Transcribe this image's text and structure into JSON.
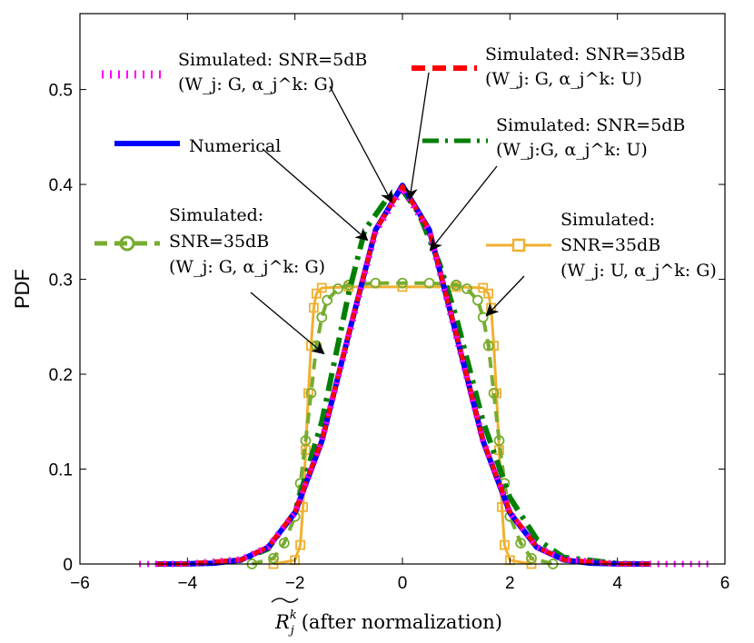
{
  "chart_data": {
    "type": "line",
    "xlim": [
      -6,
      6
    ],
    "ylim": [
      0,
      0.58
    ],
    "xticks": [
      "−6",
      "−4",
      "−2",
      "0",
      "2",
      "4",
      "6"
    ],
    "yticks": [
      "0",
      "0.1",
      "0.2",
      "0.3",
      "0.4",
      "0.5"
    ],
    "xtick_values": [
      -6,
      -4,
      -2,
      0,
      2,
      4,
      6
    ],
    "ytick_values": [
      0,
      0.1,
      0.2,
      0.3,
      0.4,
      0.5
    ],
    "xlabel_prefix": "R",
    "xlabel_sup": "k",
    "xlabel_sub": "j",
    "xlabel_suffix": "(after normalization)",
    "ylabel": "PDF",
    "grid": false,
    "series": [
      {
        "id": "numerical",
        "color": "#0000ff",
        "style": "solid-thick",
        "x": [
          -4.6,
          -4.0,
          -3.5,
          -3.0,
          -2.5,
          -2.0,
          -1.5,
          -1.0,
          -0.5,
          0.0,
          0.5,
          1.0,
          1.5,
          2.0,
          2.5,
          3.0,
          3.5,
          4.0,
          4.6
        ],
        "y": [
          0.0,
          0.0001,
          0.0009,
          0.0044,
          0.0175,
          0.054,
          0.1295,
          0.242,
          0.352,
          0.399,
          0.352,
          0.242,
          0.1295,
          0.054,
          0.0175,
          0.0044,
          0.0009,
          0.0001,
          0.0
        ]
      },
      {
        "id": "sim-snr5-gg",
        "color": "#ff00ff",
        "style": "dotted",
        "x": [
          -4.9,
          -4.0,
          -3.0,
          -2.5,
          -2.0,
          -1.5,
          -1.0,
          -0.5,
          0.0,
          0.5,
          1.0,
          1.5,
          2.0,
          2.5,
          3.0,
          4.0,
          5.0,
          5.8
        ],
        "y": [
          0.0,
          0.0002,
          0.005,
          0.018,
          0.054,
          0.13,
          0.24,
          0.35,
          0.396,
          0.35,
          0.24,
          0.13,
          0.054,
          0.018,
          0.005,
          0.0002,
          0.0,
          0.0
        ]
      },
      {
        "id": "sim-snr35-gu",
        "color": "#ff0000",
        "style": "dashed-thick",
        "x": [
          -4.6,
          -4.0,
          -3.0,
          -2.5,
          -2.0,
          -1.5,
          -1.0,
          -0.5,
          0.0,
          0.5,
          1.0,
          1.5,
          2.0,
          2.5,
          3.0,
          4.0,
          4.6
        ],
        "y": [
          0.0,
          0.0001,
          0.0045,
          0.0178,
          0.055,
          0.13,
          0.243,
          0.352,
          0.398,
          0.352,
          0.243,
          0.13,
          0.055,
          0.0178,
          0.0045,
          0.0001,
          0.0
        ]
      },
      {
        "id": "sim-snr5-gu",
        "color": "#007f00",
        "style": "dashdot-thick",
        "x": [
          -4.0,
          -3.0,
          -2.5,
          -2.0,
          -1.5,
          -1.0,
          -0.7,
          -0.3,
          0.0,
          0.3,
          0.7,
          1.0,
          1.5,
          2.0,
          2.5,
          3.0,
          4.0,
          4.5
        ],
        "y": [
          0.0,
          0.004,
          0.016,
          0.055,
          0.15,
          0.285,
          0.352,
          0.384,
          0.394,
          0.37,
          0.315,
          0.26,
          0.15,
          0.07,
          0.026,
          0.007,
          0.0005,
          0.0
        ]
      },
      {
        "id": "sim-snr35-gg",
        "color": "#77ac30",
        "style": "dashed-circles",
        "x": [
          -2.8,
          -2.4,
          -2.2,
          -2.0,
          -1.9,
          -1.8,
          -1.7,
          -1.6,
          -1.5,
          -1.4,
          -1.2,
          -1.0,
          -0.5,
          0.0,
          0.5,
          1.0,
          1.2,
          1.4,
          1.5,
          1.6,
          1.7,
          1.8,
          1.9,
          2.0,
          2.2,
          2.4,
          2.8
        ],
        "y": [
          0.0,
          0.006,
          0.022,
          0.05,
          0.085,
          0.13,
          0.18,
          0.23,
          0.26,
          0.278,
          0.29,
          0.294,
          0.296,
          0.296,
          0.296,
          0.294,
          0.29,
          0.278,
          0.26,
          0.23,
          0.18,
          0.13,
          0.085,
          0.05,
          0.022,
          0.006,
          0.0
        ]
      },
      {
        "id": "sim-snr35-ug",
        "color": "#f0b030",
        "style": "solid-squares",
        "x": [
          -2.4,
          -2.0,
          -1.9,
          -1.85,
          -1.8,
          -1.75,
          -1.7,
          -1.65,
          -1.6,
          -1.5,
          -1.0,
          0.0,
          1.0,
          1.5,
          1.6,
          1.65,
          1.7,
          1.75,
          1.8,
          1.85,
          1.9,
          2.0,
          2.4
        ],
        "y": [
          0.0,
          0.004,
          0.02,
          0.06,
          0.12,
          0.18,
          0.23,
          0.27,
          0.285,
          0.291,
          0.292,
          0.292,
          0.292,
          0.291,
          0.285,
          0.27,
          0.23,
          0.18,
          0.12,
          0.06,
          0.02,
          0.004,
          0.0
        ]
      }
    ],
    "annotations": [
      {
        "id": "ann-snr5-gg",
        "lines": [
          "Simulated: SNR=5dB",
          "(W_j: G, α_j^k: G)"
        ]
      },
      {
        "id": "ann-snr35-gu",
        "lines": [
          "Simulated: SNR=35dB",
          "(W_j: G, α_j^k: U)"
        ]
      },
      {
        "id": "ann-numerical",
        "lines": [
          "Numerical"
        ]
      },
      {
        "id": "ann-snr5-gu",
        "lines": [
          "Simulated: SNR=5dB",
          "(W_j:G, α_j^k: U)"
        ]
      },
      {
        "id": "ann-snr35-gg",
        "lines": [
          "Simulated:",
          "SNR=35dB",
          "(W_j: G, α_j^k: G)"
        ]
      },
      {
        "id": "ann-snr35-ug",
        "lines": [
          "Simulated:",
          "SNR=35dB",
          "(W_j: U, α_j^k: G)"
        ]
      }
    ]
  }
}
